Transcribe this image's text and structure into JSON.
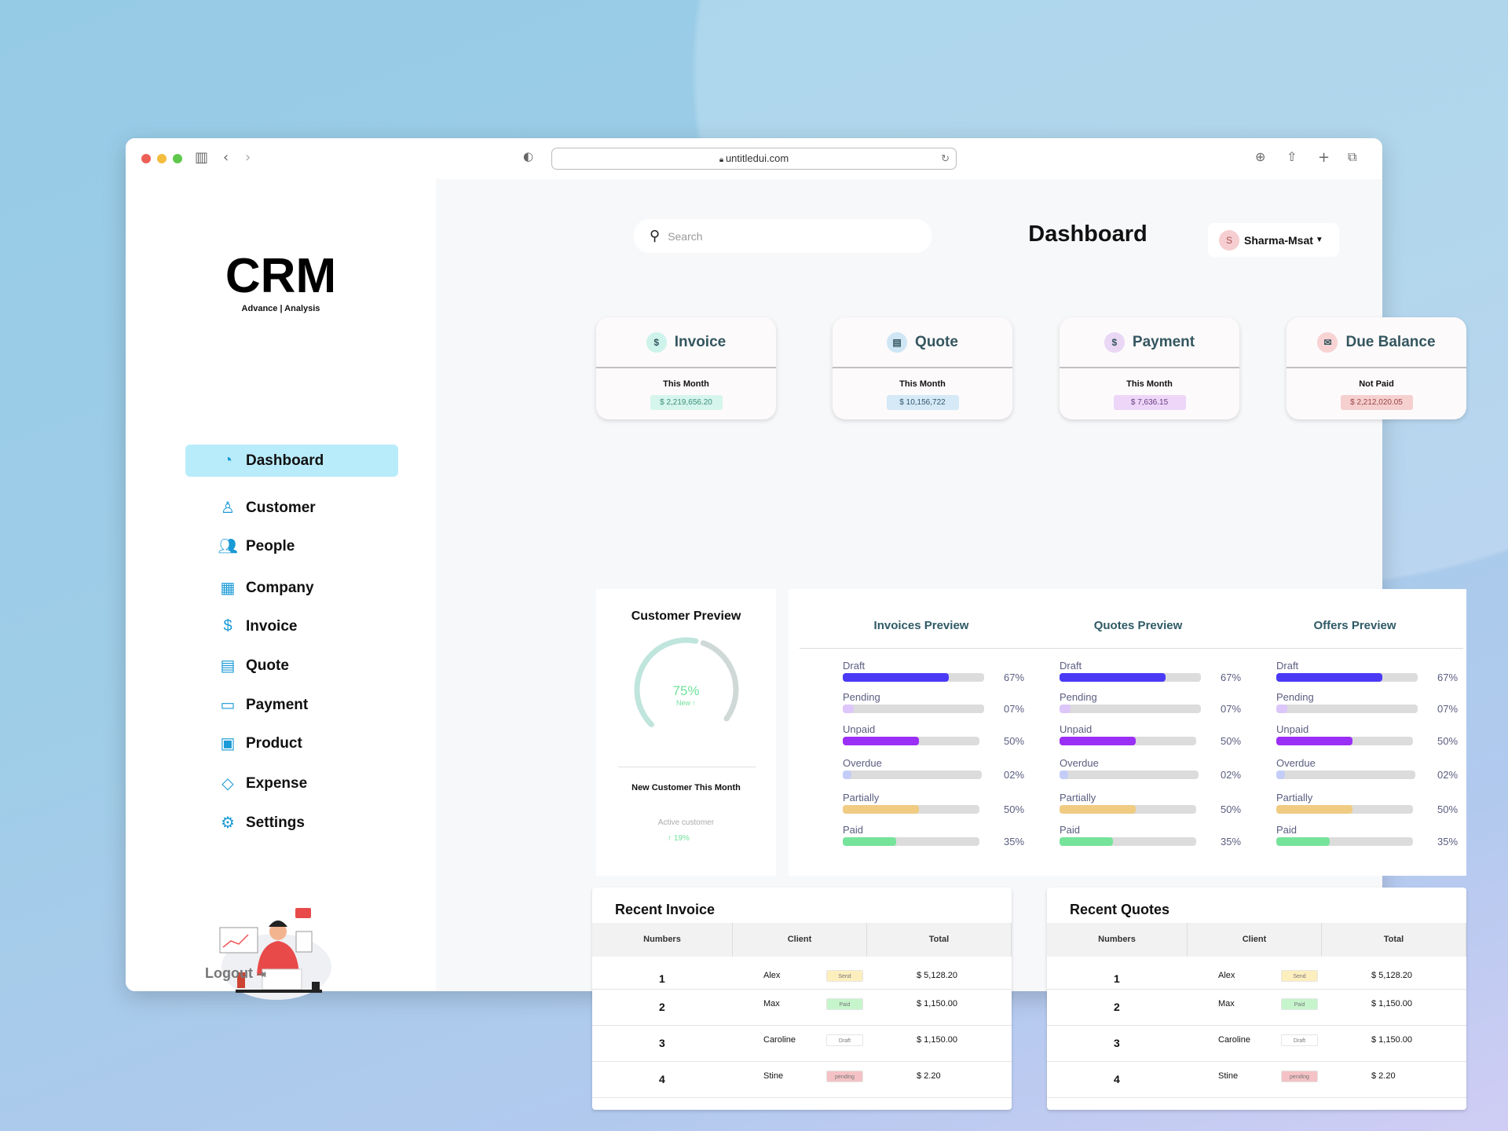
{
  "browser": {
    "url": "untitledui.com"
  },
  "sidebar": {
    "logo": "CRM",
    "logo_sub": "Advance | Analysis",
    "items": [
      {
        "label": "Dashboard",
        "icon": "dashboard-icon"
      },
      {
        "label": "Customer",
        "icon": "user-icon"
      },
      {
        "label": "People",
        "icon": "people-icon"
      },
      {
        "label": "Company",
        "icon": "building-icon"
      },
      {
        "label": "Invoice",
        "icon": "invoice-icon"
      },
      {
        "label": "Quote",
        "icon": "document-icon"
      },
      {
        "label": "Payment",
        "icon": "wallet-icon"
      },
      {
        "label": "Product",
        "icon": "box-icon"
      },
      {
        "label": "Expense",
        "icon": "tag-icon"
      },
      {
        "label": "Settings",
        "icon": "gear-icon"
      }
    ],
    "logout": "Logout"
  },
  "header": {
    "search_placeholder": "Search",
    "title": "Dashboard",
    "user": "Sharma-Msat",
    "user_initial": "S"
  },
  "cards": [
    {
      "title": "Invoice",
      "sub": "This Month",
      "value": "$ 2,219,656.20",
      "icon": "$",
      "color": "#cdf3ea",
      "valbg": "#d6f5ec",
      "valcolor": "#3b8f7a"
    },
    {
      "title": "Quote",
      "sub": "This Month",
      "value": "$ 10,156,722",
      "icon": "▤",
      "color": "#cfe6f5",
      "valbg": "#d5e9f7",
      "valcolor": "#34566b"
    },
    {
      "title": "Payment",
      "sub": "This Month",
      "value": "$ 7,636.15",
      "icon": "$",
      "color": "#ead6f5",
      "valbg": "#edd6f7",
      "valcolor": "#6b3f86"
    },
    {
      "title": "Due Balance",
      "sub": "Not Paid",
      "value": "$ 2,212,020.05",
      "icon": "✉",
      "color": "#f8d3d3",
      "valbg": "#f6cfcf",
      "valcolor": "#9a4545"
    }
  ],
  "customer_preview": {
    "title": "Customer Preview",
    "percent": "75%",
    "percent_value": 75,
    "new_label": "New ↑",
    "caption": "New Customer This Month",
    "active_label": "Active customer",
    "active_value": "↑ 19%"
  },
  "previews": [
    {
      "title": "Invoices Preview",
      "rows": [
        {
          "label": "Draft",
          "pct": "67%",
          "value": 67
        },
        {
          "label": "Pending",
          "pct": "07%",
          "value": 7
        },
        {
          "label": "Unpaid",
          "pct": "50%",
          "value": 50
        },
        {
          "label": "Overdue",
          "pct": "02%",
          "value": 2
        },
        {
          "label": "Partially",
          "pct": "50%",
          "value": 50
        },
        {
          "label": "Paid",
          "pct": "35%",
          "value": 35
        }
      ]
    },
    {
      "title": "Quotes Preview",
      "rows": [
        {
          "label": "Draft",
          "pct": "67%",
          "value": 67
        },
        {
          "label": "Pending",
          "pct": "07%",
          "value": 7
        },
        {
          "label": "Unpaid",
          "pct": "50%",
          "value": 50
        },
        {
          "label": "Overdue",
          "pct": "02%",
          "value": 2
        },
        {
          "label": "Partially",
          "pct": "50%",
          "value": 50
        },
        {
          "label": "Paid",
          "pct": "35%",
          "value": 35
        }
      ]
    },
    {
      "title": "Offers Preview",
      "rows": [
        {
          "label": "Draft",
          "pct": "67%",
          "value": 67
        },
        {
          "label": "Pending",
          "pct": "07%",
          "value": 7
        },
        {
          "label": "Unpaid",
          "pct": "50%",
          "value": 50
        },
        {
          "label": "Overdue",
          "pct": "02%",
          "value": 2
        },
        {
          "label": "Partially",
          "pct": "50%",
          "value": 50
        },
        {
          "label": "Paid",
          "pct": "35%",
          "value": 35
        }
      ]
    }
  ],
  "bar_colors": [
    "#4a3af5",
    "#dcc6fa",
    "#9a2ff5",
    "#c4cdf8",
    "#f0cb82",
    "#76e39a"
  ],
  "tables": [
    {
      "title": "Recent Invoice",
      "headers": [
        "Numbers",
        "Client",
        "Total"
      ],
      "rows": [
        {
          "num": "1",
          "client": "Alex",
          "status": "Send",
          "total": "$ 5,128.20"
        },
        {
          "num": "2",
          "client": "Max",
          "status": "Paid",
          "total": "$ 1,150.00"
        },
        {
          "num": "3",
          "client": "Caroline",
          "status": "Draft",
          "total": "$ 1,150.00"
        },
        {
          "num": "4",
          "client": "Stine",
          "status": "pending",
          "total": "$ 2.20"
        }
      ]
    },
    {
      "title": "Recent Quotes",
      "headers": [
        "Numbers",
        "Client",
        "Total"
      ],
      "rows": [
        {
          "num": "1",
          "client": "Alex",
          "status": "Send",
          "total": "$ 5,128.20"
        },
        {
          "num": "2",
          "client": "Max",
          "status": "Paid",
          "total": "$ 1,150.00"
        },
        {
          "num": "3",
          "client": "Caroline",
          "status": "Draft",
          "total": "$ 1,150.00"
        },
        {
          "num": "4",
          "client": "Stine",
          "status": "pending",
          "total": "$ 2.20"
        }
      ]
    }
  ],
  "status_colors": {
    "Send": "#fdeebe",
    "Paid": "#c6f5cc",
    "Draft": "#ffffff",
    "pending": "#f4c2c5"
  }
}
